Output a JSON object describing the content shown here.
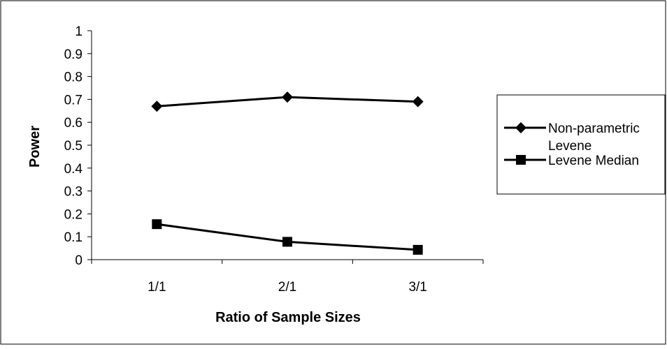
{
  "chart_data": {
    "type": "line",
    "xlabel": "Ratio of Sample Sizes",
    "ylabel": "Power",
    "categories": [
      "1/1",
      "2/1",
      "3/1"
    ],
    "ylim": [
      0,
      1
    ],
    "yticks": [
      "0",
      "0.1",
      "0.2",
      "0.3",
      "0.4",
      "0.5",
      "0.6",
      "0.7",
      "0.8",
      "0.9",
      "1"
    ],
    "grid": false,
    "legend_position": "right",
    "series": [
      {
        "name": "Non-parametric Levene",
        "name_lines": [
          "Non-parametric",
          "Levene"
        ],
        "marker": "diamond",
        "values": [
          0.67,
          0.71,
          0.69
        ]
      },
      {
        "name": "Levene Median",
        "name_lines": [
          "Levene Median"
        ],
        "marker": "square",
        "values": [
          0.155,
          0.078,
          0.043
        ]
      }
    ],
    "colors": {
      "line": "#000000",
      "frame": "#000000",
      "background": "#ffffff"
    }
  }
}
